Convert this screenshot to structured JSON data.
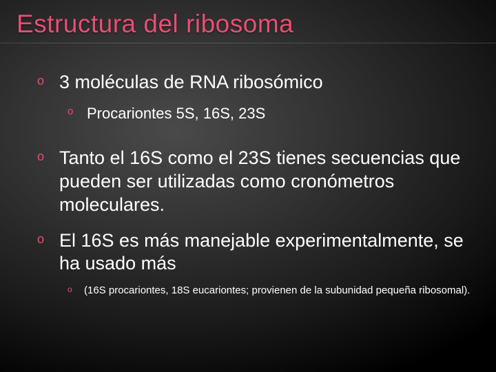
{
  "colors": {
    "accent": "#e84f74",
    "text": "#ffffff",
    "bg_center": "#4a4a4a",
    "bg_edge": "#000000",
    "divider": "rgba(130,130,130,0.4)"
  },
  "typography": {
    "title_fontsize": 37,
    "lvl1_fontsize": 27,
    "lvl2_fontsize": 22,
    "lvl3_fontsize": 15,
    "font_family": "Arial"
  },
  "slide": {
    "title": "Estructura del ribosoma",
    "items": [
      {
        "text": "3 moléculas de RNA ribosómico",
        "sub": [
          {
            "text": "Procariontes 5S, 16S, 23S"
          }
        ]
      },
      {
        "text": "Tanto el 16S como el 23S tienes secuencias que pueden ser utilizadas como cronómetros moleculares."
      },
      {
        "text": "El 16S es más manejable experimentalmente, se ha usado más",
        "sub3": [
          {
            "text": "(16S procariontes, 18S eucariontes; provienen de la subunidad pequeña ribosomal)."
          }
        ]
      }
    ]
  }
}
